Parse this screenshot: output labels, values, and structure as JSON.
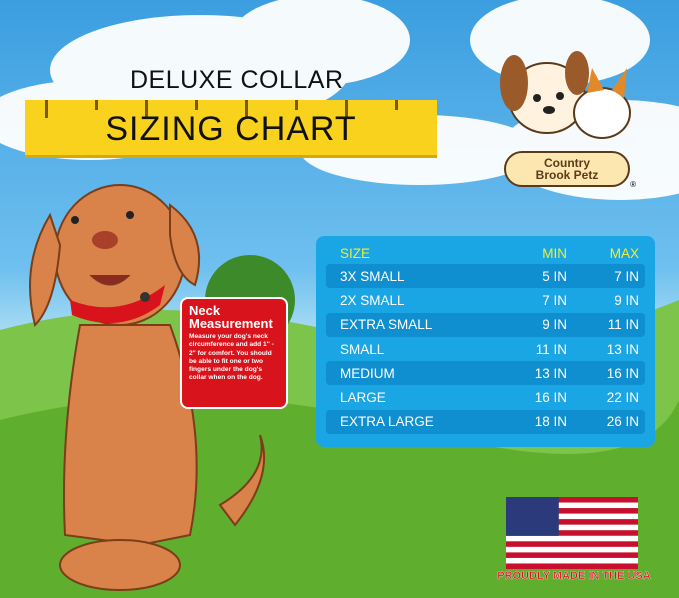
{
  "title": {
    "line1": "DELUXE COLLAR",
    "line2": "SIZING CHART"
  },
  "logo": {
    "line1": "Country",
    "line2": "Brook Petz",
    "mark": "®"
  },
  "callout": {
    "heading": "Neck Measurement",
    "body": "Measure your dog's neck circumference and add 1\" - 2\" for comfort. You should be able to fit one or two fingers under the dog's collar when on the dog."
  },
  "table": {
    "headers": [
      "SIZE",
      "MIN",
      "MAX"
    ],
    "rows": [
      [
        "3X SMALL",
        "5 IN",
        "7 IN"
      ],
      [
        "2X SMALL",
        "7 IN",
        "9 IN"
      ],
      [
        "EXTRA SMALL",
        "9 IN",
        "11 IN"
      ],
      [
        "SMALL",
        "11 IN",
        "13 IN"
      ],
      [
        "MEDIUM",
        "13 IN",
        "16 IN"
      ],
      [
        "LARGE",
        "16 IN",
        "22 IN"
      ],
      [
        "EXTRA LARGE",
        "18 IN",
        "26 IN"
      ]
    ]
  },
  "footer": {
    "made_in": "PROUDLY MADE IN THE USA"
  },
  "colors": {
    "ruler": "#f8d21c",
    "table": "#1aa5e4",
    "callout": "#d8131b"
  }
}
